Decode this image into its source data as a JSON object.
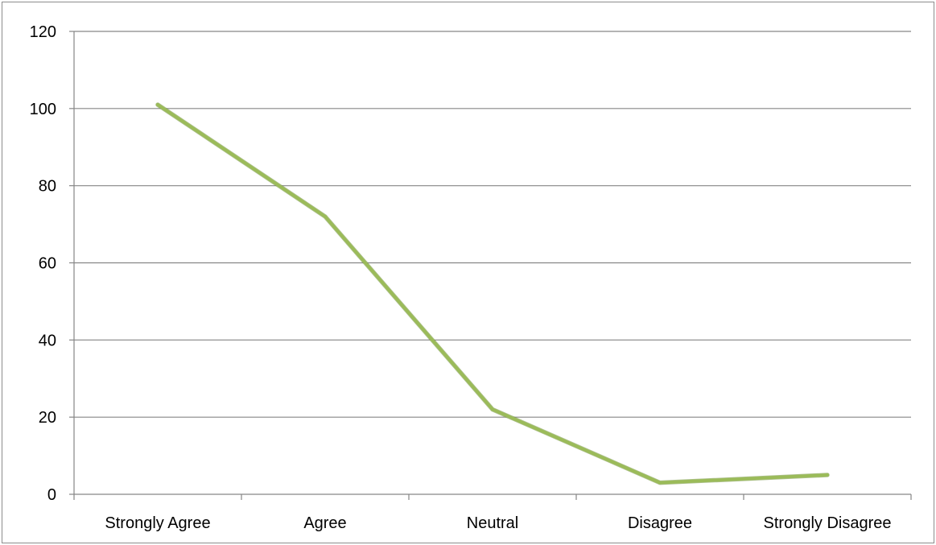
{
  "chart_data": {
    "type": "line",
    "title": "",
    "xlabel": "",
    "ylabel": "",
    "categories": [
      "Strongly Agree",
      "Agree",
      "Neutral",
      "Disagree",
      "Strongly Disagree"
    ],
    "series": [
      {
        "values": [
          101,
          72,
          22,
          3,
          5
        ]
      }
    ],
    "ylim": [
      0,
      120
    ],
    "yticks": [
      0,
      20,
      40,
      60,
      80,
      100,
      120
    ],
    "grid": true,
    "legend": "none",
    "colors": {
      "line": "#9bbb59",
      "line_shadow": "#6f8f3a",
      "grid": "#868686",
      "axis": "#868686"
    }
  }
}
